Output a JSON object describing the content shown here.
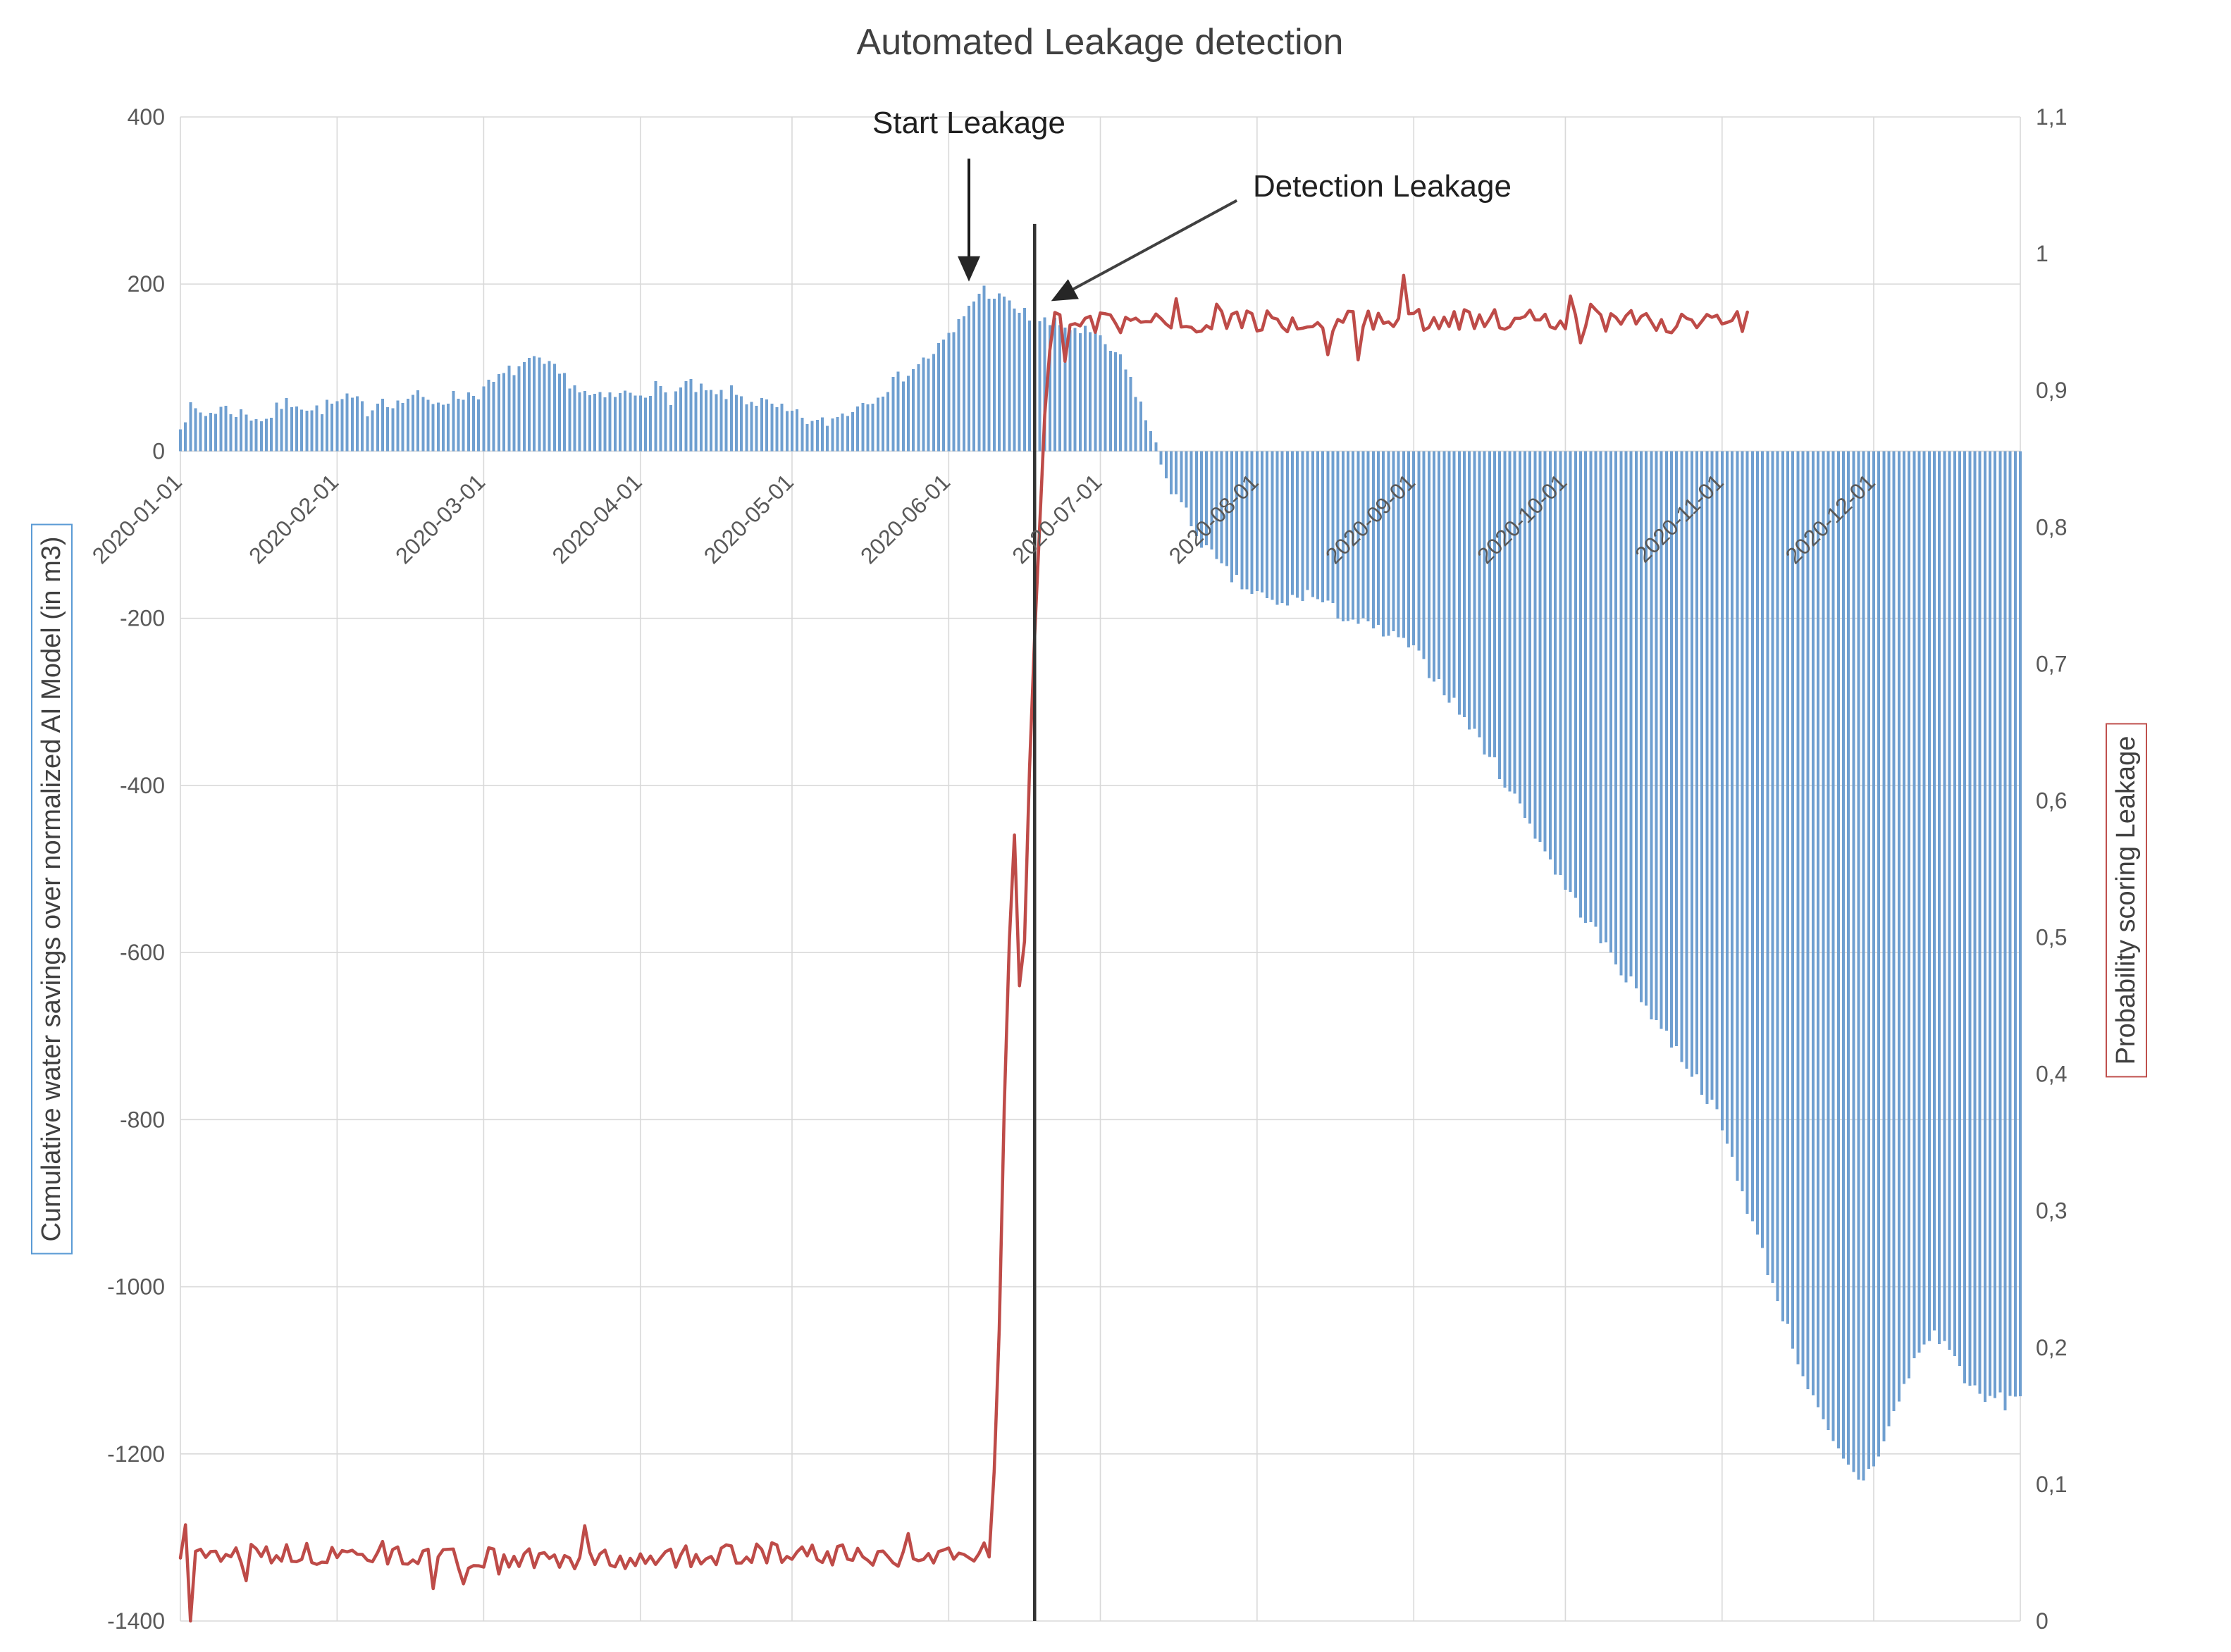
{
  "chart_data": {
    "type": "combo",
    "title": "Automated Leakage detection",
    "grid": true,
    "legend": false,
    "x_axis": {
      "total_days": 365,
      "range": [
        "2020-01-01",
        "2020-12-31"
      ],
      "tick_days": [
        1,
        32,
        61,
        92,
        122,
        153,
        183,
        214,
        245,
        275,
        306,
        336
      ],
      "tick_labels": [
        "2020-01-01",
        "2020-02-01",
        "2020-03-01",
        "2020-04-01",
        "2020-05-01",
        "2020-06-01",
        "2020-07-01",
        "2020-08-01",
        "2020-09-01",
        "2020-10-01",
        "2020-11-01",
        "2020-12-01"
      ]
    },
    "left_axis": {
      "label": "Cumulative water savings over normalized AI Model (in m3)",
      "min": -1400,
      "max": 400,
      "tick_values": [
        400,
        200,
        0,
        -200,
        -400,
        -600,
        -800,
        -1000,
        -1200,
        -1400
      ],
      "tick_labels": [
        "400",
        "200",
        "0",
        "-200",
        "-400",
        "-600",
        "-800",
        "-1000",
        "-1200",
        "-1400"
      ]
    },
    "right_axis": {
      "label": "Probability scoring Leakage",
      "min": 0,
      "max": 1.1,
      "tick_values": [
        1.1,
        1,
        0.9,
        0.8,
        0.7,
        0.6,
        0.5,
        0.4,
        0.3,
        0.2,
        0.1,
        0
      ],
      "tick_labels": [
        "1,1",
        "1",
        "0,9",
        "0,8",
        "0,7",
        "0,6",
        "0,5",
        "0,4",
        "0,3",
        "0,2",
        "0,1",
        "0"
      ]
    },
    "colors": {
      "bars": "#6F9FD0",
      "line": "#BE4B48",
      "grid": "#D9D9D9",
      "tick_text": "#595959",
      "annotation": "#333333",
      "left_label_border": "#5B9BD5",
      "right_label_border": "#C0504D"
    },
    "series": [
      {
        "name": "Cumulative water savings over normalized AI Model (in m3)",
        "type": "bar",
        "axis": "left",
        "color": "#6F9FD0",
        "seed": 7,
        "noise": 9,
        "anchors": [
          [
            1,
            35
          ],
          [
            3,
            50
          ],
          [
            6,
            44
          ],
          [
            9,
            52
          ],
          [
            12,
            47
          ],
          [
            15,
            42
          ],
          [
            18,
            38
          ],
          [
            21,
            55
          ],
          [
            24,
            60
          ],
          [
            27,
            48
          ],
          [
            31,
            56
          ],
          [
            35,
            62
          ],
          [
            38,
            50
          ],
          [
            41,
            64
          ],
          [
            44,
            56
          ],
          [
            47,
            68
          ],
          [
            50,
            58
          ],
          [
            53,
            62
          ],
          [
            56,
            66
          ],
          [
            60,
            70
          ],
          [
            63,
            82
          ],
          [
            66,
            95
          ],
          [
            69,
            104
          ],
          [
            72,
            106
          ],
          [
            75,
            96
          ],
          [
            78,
            84
          ],
          [
            81,
            68
          ],
          [
            84,
            62
          ],
          [
            87,
            66
          ],
          [
            91,
            70
          ],
          [
            95,
            76
          ],
          [
            98,
            64
          ],
          [
            101,
            80
          ],
          [
            104,
            72
          ],
          [
            107,
            66
          ],
          [
            110,
            70
          ],
          [
            113,
            62
          ],
          [
            116,
            58
          ],
          [
            119,
            50
          ],
          [
            121,
            46
          ],
          [
            124,
            40
          ],
          [
            127,
            32
          ],
          [
            130,
            38
          ],
          [
            133,
            48
          ],
          [
            136,
            58
          ],
          [
            139,
            70
          ],
          [
            142,
            82
          ],
          [
            145,
            96
          ],
          [
            148,
            108
          ],
          [
            151,
            124
          ],
          [
            154,
            142
          ],
          [
            156,
            163
          ],
          [
            158,
            183
          ],
          [
            160,
            193
          ],
          [
            162,
            187
          ],
          [
            164,
            179
          ],
          [
            166,
            172
          ],
          [
            168,
            164
          ],
          [
            170,
            158
          ],
          [
            172,
            154
          ],
          [
            175,
            150
          ],
          [
            178,
            147
          ],
          [
            181,
            141
          ],
          [
            184,
            128
          ],
          [
            187,
            108
          ],
          [
            189,
            86
          ],
          [
            191,
            56
          ],
          [
            193,
            22
          ],
          [
            195,
            -14
          ],
          [
            197,
            -44
          ],
          [
            200,
            -76
          ],
          [
            203,
            -108
          ],
          [
            206,
            -134
          ],
          [
            209,
            -152
          ],
          [
            212,
            -166
          ],
          [
            215,
            -174
          ],
          [
            218,
            -186
          ],
          [
            221,
            -178
          ],
          [
            224,
            -170
          ],
          [
            227,
            -182
          ],
          [
            230,
            -194
          ],
          [
            233,
            -202
          ],
          [
            236,
            -210
          ],
          [
            239,
            -218
          ],
          [
            242,
            -226
          ],
          [
            244,
            -232
          ],
          [
            247,
            -255
          ],
          [
            251,
            -285
          ],
          [
            255,
            -320
          ],
          [
            259,
            -355
          ],
          [
            263,
            -395
          ],
          [
            267,
            -435
          ],
          [
            271,
            -478
          ],
          [
            274,
            -512
          ],
          [
            278,
            -550
          ],
          [
            282,
            -585
          ],
          [
            286,
            -620
          ],
          [
            290,
            -655
          ],
          [
            294,
            -690
          ],
          [
            298,
            -725
          ],
          [
            302,
            -762
          ],
          [
            305,
            -795
          ],
          [
            308,
            -848
          ],
          [
            311,
            -905
          ],
          [
            314,
            -960
          ],
          [
            317,
            -1015
          ],
          [
            320,
            -1070
          ],
          [
            323,
            -1120
          ],
          [
            326,
            -1165
          ],
          [
            329,
            -1200
          ],
          [
            332,
            -1225
          ],
          [
            334,
            -1230
          ],
          [
            336,
            -1212
          ],
          [
            338,
            -1185
          ],
          [
            340,
            -1152
          ],
          [
            342,
            -1120
          ],
          [
            344,
            -1090
          ],
          [
            346,
            -1068
          ],
          [
            348,
            -1058
          ],
          [
            350,
            -1066
          ],
          [
            352,
            -1086
          ],
          [
            354,
            -1108
          ],
          [
            356,
            -1126
          ],
          [
            358,
            -1138
          ],
          [
            360,
            -1130
          ],
          [
            362,
            -1140
          ],
          [
            365,
            -1126
          ]
        ]
      },
      {
        "name": "Probability scoring Leakage",
        "type": "line",
        "axis": "right",
        "color": "#BE4B48",
        "seed": 13,
        "end_day": 311,
        "noise": {
          "base": 0.008,
          "spike_prob": 0.1,
          "spike": 0.03
        },
        "anchors": [
          [
            1,
            0.045
          ],
          [
            2,
            0.105
          ],
          [
            3,
            0.012
          ],
          [
            4,
            0.05
          ],
          [
            40,
            0.048
          ],
          [
            80,
            0.044
          ],
          [
            120,
            0.05
          ],
          [
            158,
            0.045
          ],
          [
            160,
            0.058
          ],
          [
            161,
            0.05
          ],
          [
            162,
            0.11
          ],
          [
            163,
            0.22
          ],
          [
            164,
            0.38
          ],
          [
            165,
            0.5
          ],
          [
            166,
            0.57
          ],
          [
            167,
            0.47
          ],
          [
            168,
            0.52
          ],
          [
            169,
            0.63
          ],
          [
            170,
            0.72
          ],
          [
            171,
            0.8
          ],
          [
            172,
            0.88
          ],
          [
            173,
            0.93
          ],
          [
            174,
            0.948
          ],
          [
            200,
            0.95
          ],
          [
            250,
            0.952
          ],
          [
            311,
            0.95
          ]
        ]
      }
    ],
    "annotations": {
      "start_leakage": {
        "label": "Start Leakage",
        "day": 157,
        "arrow_from_value": 350,
        "arrow_to_value": 208
      },
      "detection_leakage": {
        "label": "Detection Leakage",
        "line_from_day": 210,
        "line_from_value": 300,
        "line_to_day": 174,
        "line_to_value": 182
      },
      "detection_line": {
        "day": 170,
        "top_value": 272
      }
    }
  }
}
